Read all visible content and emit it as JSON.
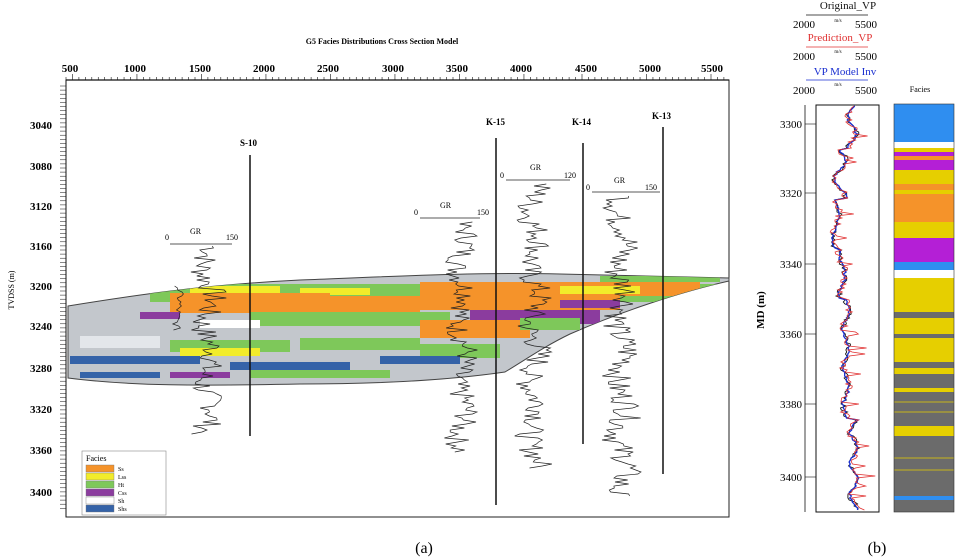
{
  "left_panel": {
    "title": "G5 Facies Distributions Cross Section Model",
    "x_ticks": [
      "500",
      "1000",
      "1500",
      "2000",
      "2500",
      "3000",
      "3500",
      "4000",
      "4500",
      "5000",
      "5500"
    ],
    "y_label": "TVDSS (m)",
    "y_ticks": [
      "3040",
      "3080",
      "3120",
      "3160",
      "3200",
      "3240",
      "3280",
      "3320",
      "3360",
      "3400"
    ],
    "wells": [
      {
        "name": "S-10",
        "gr_min": "0",
        "gr_max": "150",
        "gr_label": "GR"
      },
      {
        "name": "K-15",
        "gr_min": "0",
        "gr_max": "150",
        "gr_label": "GR"
      },
      {
        "name": "K-14",
        "gr_min": "0",
        "gr_max": "120",
        "gr_label": "GR"
      },
      {
        "name": "K-13",
        "gr_min": "0",
        "gr_max": "150",
        "gr_label": "GR"
      }
    ],
    "legend": {
      "title": "Facies",
      "items": [
        {
          "label": "Ss",
          "color": "#f5932a"
        },
        {
          "label": "Lss",
          "color": "#f2ec2a"
        },
        {
          "label": "Ht",
          "color": "#7ec85a"
        },
        {
          "label": "Css",
          "color": "#8b3c9e"
        },
        {
          "label": "Sh",
          "color": "#ffffff"
        },
        {
          "label": "Shs",
          "color": "#3563a8"
        }
      ]
    },
    "caption": "(a)"
  },
  "right_panel": {
    "header": {
      "original_vp": "Original_VP",
      "prediction_vp": "Prediction_VP",
      "vp_model_inv": "VP Model Inv",
      "scale_min": "2000",
      "scale_max": "5500",
      "scale_mid": "m/s"
    },
    "y_label": "MD (m)",
    "y_ticks": [
      "3300",
      "3320",
      "3340",
      "3360",
      "3380",
      "3400"
    ],
    "facies_label": "Facies",
    "caption": "(b)",
    "colors": {
      "original": "#111111",
      "prediction": "#e03030",
      "model": "#1a2fd0",
      "sh": "#6b6b6b",
      "lss": "#e6cf00",
      "css": "#b41fd6",
      "top": "#2f8ef0"
    }
  }
}
